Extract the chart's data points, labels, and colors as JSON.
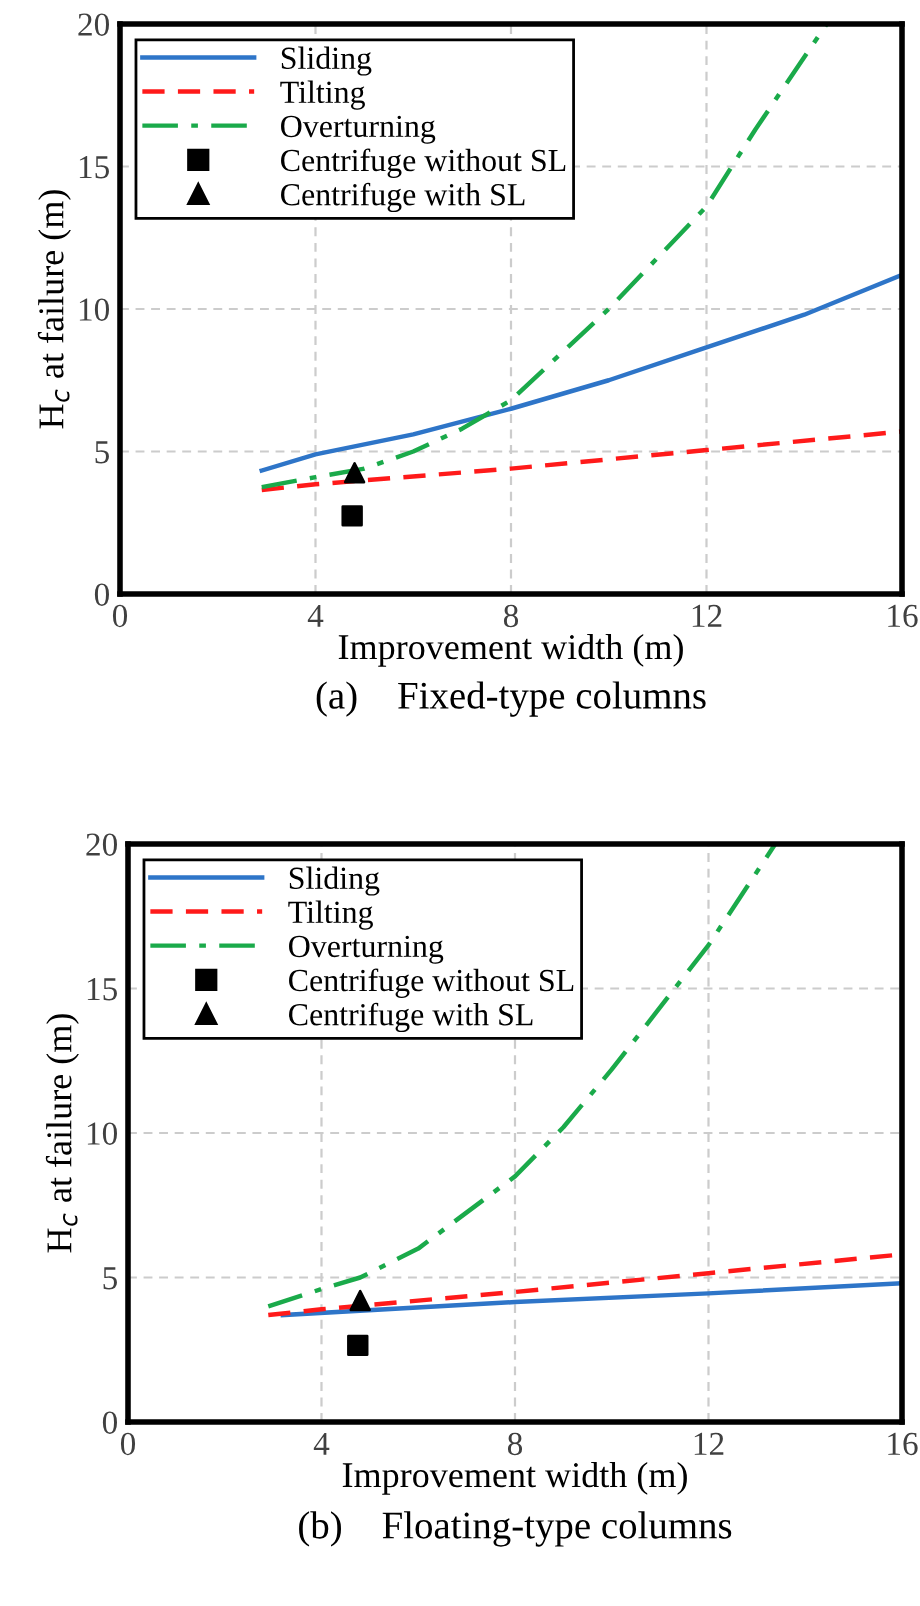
{
  "chart_data": [
    {
      "type": "line",
      "title": "(a)    Fixed-type columns",
      "xlabel": "Improvement width (m)",
      "ylabel": "H$_{c}$ at failure (m)",
      "xlim": [
        0,
        16
      ],
      "ylim": [
        0,
        20
      ],
      "xticks": [
        0,
        4,
        8,
        12,
        16
      ],
      "yticks": [
        0,
        5,
        10,
        15,
        20
      ],
      "grid": true,
      "legend": "top left",
      "series": [
        {
          "name": "Sliding",
          "color": "#2e75c8",
          "line_style": "solid",
          "x": [
            2.9,
            4,
            6,
            8,
            10,
            12,
            14,
            16
          ],
          "values": [
            4.33,
            4.9,
            5.6,
            6.5,
            7.5,
            8.65,
            9.8,
            11.2
          ]
        },
        {
          "name": "Tilting",
          "color": "#ff1a1a",
          "line_style": "dashed",
          "x": [
            2.9,
            4,
            8,
            12,
            16
          ],
          "values": [
            3.65,
            3.85,
            4.4,
            5.05,
            5.7
          ]
        },
        {
          "name": "Overturning",
          "color": "#1aaa4a",
          "line_style": "dashdot",
          "x": [
            2.9,
            4,
            5,
            6,
            7,
            8,
            10,
            12,
            13,
            14.46
          ],
          "values": [
            3.75,
            4.1,
            4.4,
            5.0,
            5.8,
            6.8,
            10.0,
            13.6,
            16.3,
            20
          ]
        },
        {
          "name": "Centrifuge without SL",
          "type": "scatter",
          "color": "#000000",
          "marker": "square",
          "x": [
            4.75
          ],
          "values": [
            2.74
          ]
        },
        {
          "name": "Centrifuge with SL",
          "type": "scatter",
          "color": "#000000",
          "marker": "triangle",
          "x": [
            4.8
          ],
          "values": [
            4.25
          ]
        }
      ]
    },
    {
      "type": "line",
      "title": "(b)    Floating-type columns",
      "xlabel": "Improvement width (m)",
      "ylabel": "H$_{c}$ at failure (m)",
      "xlim": [
        0,
        16
      ],
      "ylim": [
        0,
        20
      ],
      "xticks": [
        0,
        4,
        8,
        12,
        16
      ],
      "yticks": [
        0,
        5,
        10,
        15,
        20
      ],
      "grid": true,
      "legend": "top left",
      "series": [
        {
          "name": "Sliding",
          "color": "#2e75c8",
          "line_style": "solid",
          "x": [
            3.2,
            8,
            12,
            16
          ],
          "values": [
            3.7,
            4.15,
            4.45,
            4.8
          ]
        },
        {
          "name": "Tilting",
          "color": "#ff1a1a",
          "line_style": "dashed",
          "x": [
            2.9,
            4,
            8,
            12,
            16
          ],
          "values": [
            3.7,
            3.9,
            4.5,
            5.15,
            5.8
          ]
        },
        {
          "name": "Overturning",
          "color": "#1aaa4a",
          "line_style": "dashdot",
          "x": [
            2.9,
            4,
            4.8,
            6,
            8,
            9,
            10,
            12,
            13.38
          ],
          "values": [
            4.0,
            4.6,
            5.0,
            6.0,
            8.5,
            10.2,
            12.2,
            16.5,
            20
          ]
        },
        {
          "name": "Centrifuge without SL",
          "type": "scatter",
          "color": "#000000",
          "marker": "square",
          "x": [
            4.75
          ],
          "values": [
            2.65
          ]
        },
        {
          "name": "Centrifuge with SL",
          "type": "scatter",
          "color": "#000000",
          "marker": "triangle",
          "x": [
            4.8
          ],
          "values": [
            4.2
          ]
        }
      ]
    }
  ]
}
